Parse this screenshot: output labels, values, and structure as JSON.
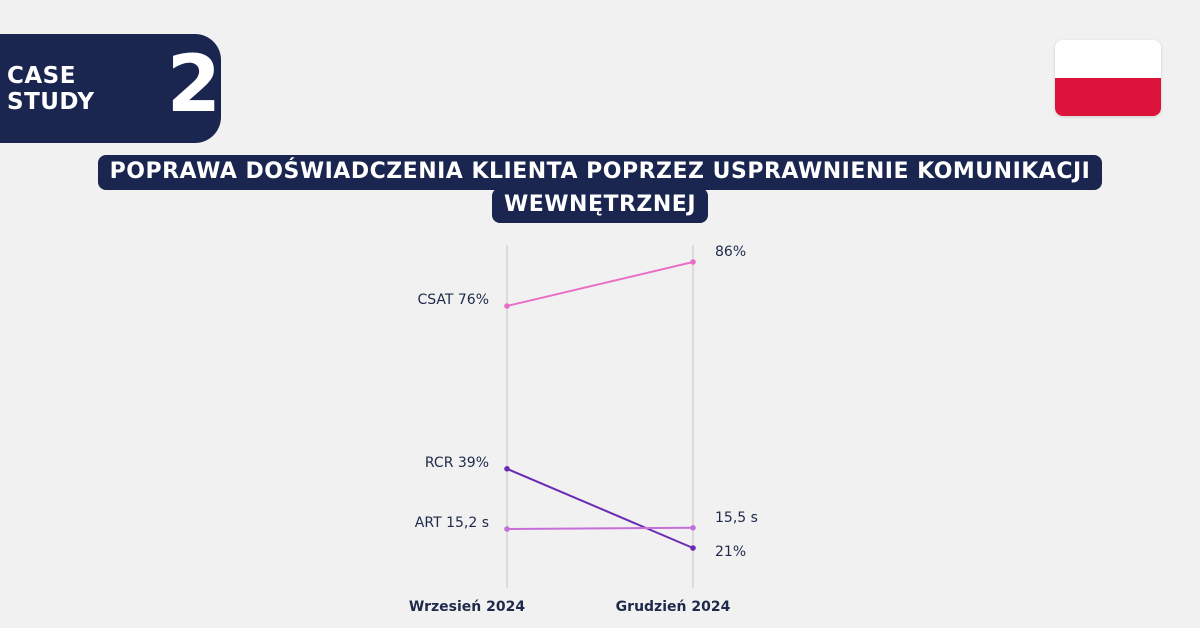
{
  "badge": {
    "label": "CASE STUDY",
    "number": "2"
  },
  "flag": {
    "country": "Poland",
    "colors": [
      "#ffffff",
      "#dc143c"
    ]
  },
  "title": {
    "line1": "POPRAWA DOŚWIADCZENIA KLIENTA POPRZEZ USPRAWNIENIE KOMUNIKACJI",
    "line2": "WEWNĘTRZNEJ"
  },
  "colors": {
    "navy": "#1a2550",
    "background": "#f2f1f1"
  },
  "chart_data": {
    "type": "line",
    "categories": [
      "Wrzesień 2024",
      "Grudzień 2024"
    ],
    "series": [
      {
        "name": "CSAT",
        "values": [
          76,
          86
        ],
        "unit": "%",
        "color": "#e86fc6",
        "labels": [
          "CSAT 76%",
          "86%"
        ]
      },
      {
        "name": "RCR",
        "values": [
          39,
          21
        ],
        "unit": "%",
        "color": "#6a2bb5",
        "labels": [
          "RCR 39%",
          "21%"
        ]
      },
      {
        "name": "ART",
        "values": [
          15.2,
          15.5
        ],
        "unit": "s",
        "color": "#c66fd9",
        "labels": [
          "ART 15,2 s",
          "15,5 s"
        ]
      }
    ],
    "grid": "vertical lines at each category",
    "legend": "none"
  }
}
